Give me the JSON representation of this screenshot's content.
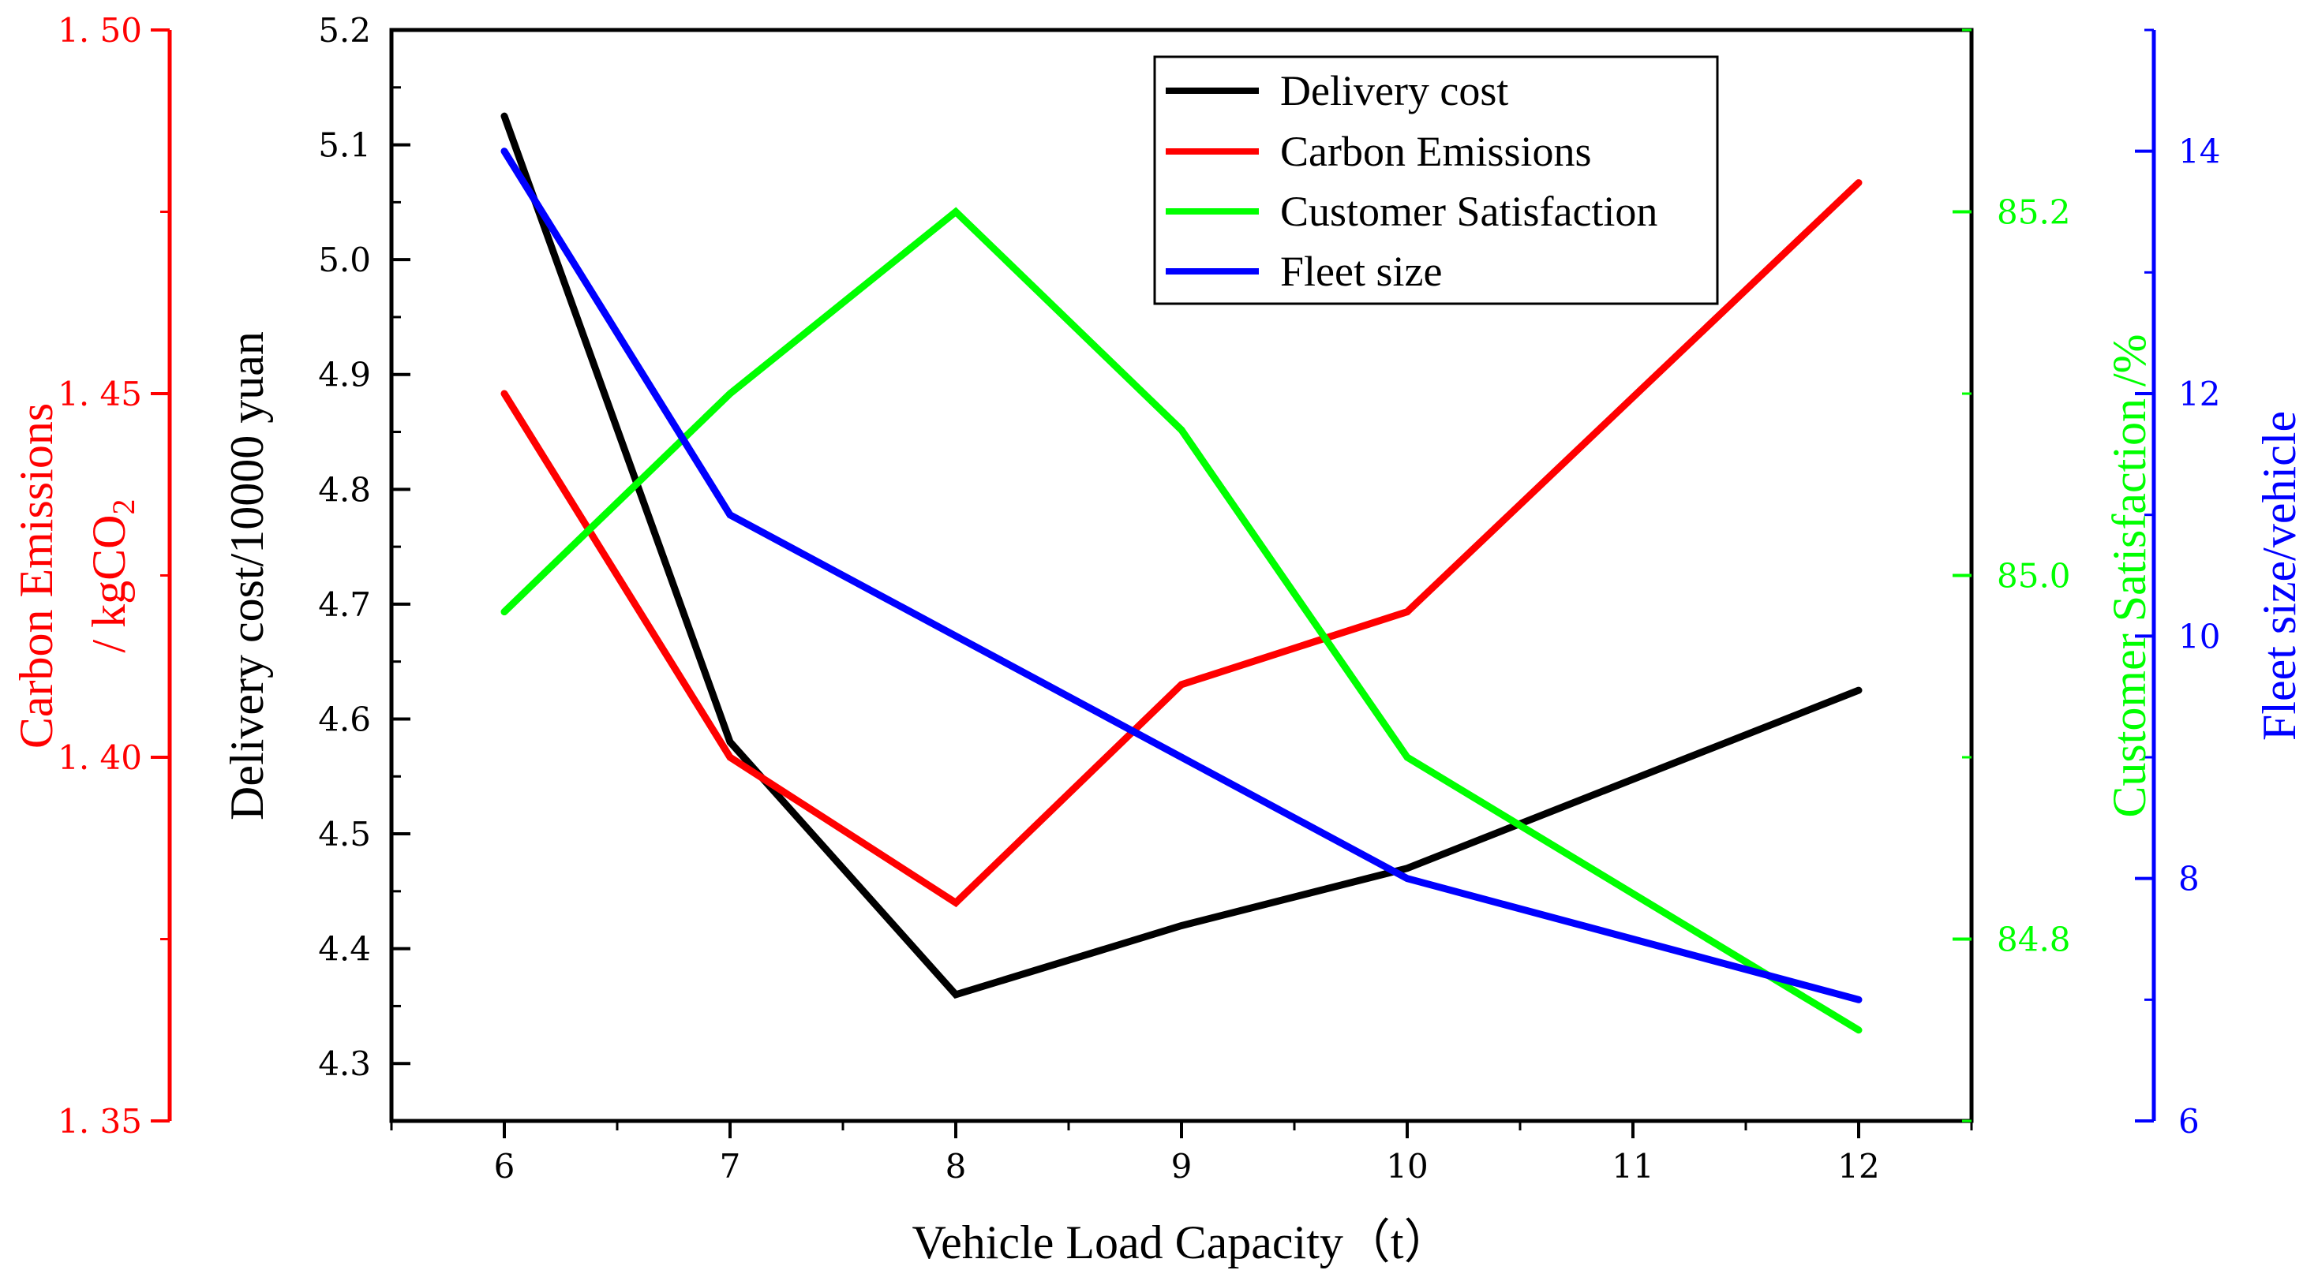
{
  "chart_data": {
    "type": "line",
    "x": [
      6,
      7,
      8,
      9,
      10,
      11,
      12
    ],
    "xlabel": "Vehicle Load Capacity（t）",
    "xticks": [
      "6",
      "7",
      "8",
      "9",
      "10",
      "11",
      "12"
    ],
    "xlim": [
      5.5,
      12.5
    ],
    "axes": {
      "cost": {
        "label": "Delivery cost/10000 yuan",
        "color": "#000000",
        "lim": [
          4.25,
          5.2
        ],
        "ticks": [
          "4.3",
          "4.4",
          "4.5",
          "4.6",
          "4.7",
          "4.8",
          "4.9",
          "5.0",
          "5.1",
          "5.2"
        ]
      },
      "carbon": {
        "label_line1": "Carbon Emissions",
        "label_line2_prefix": "/ kgCO",
        "label_line2_sub": "2",
        "color": "#ff0000",
        "lim": [
          1.35,
          1.5
        ],
        "ticks": [
          "1. 35",
          "1. 40",
          "1. 45",
          "1. 50"
        ]
      },
      "satisfaction": {
        "label": "Customer Satisfaction /%",
        "color": "#00ff00",
        "lim": [
          84.7,
          85.3
        ],
        "ticks": [
          "84.8",
          "85.0",
          "85.2"
        ]
      },
      "fleet": {
        "label": "Fleet size/vehicle",
        "color": "#0000ff",
        "lim": [
          6,
          15
        ],
        "ticks": [
          "6",
          "8",
          "10",
          "12",
          "14"
        ]
      }
    },
    "series": [
      {
        "name": "Delivery cost",
        "axis": "cost",
        "color": "#000000",
        "x": [
          6,
          7,
          8,
          9,
          10,
          12
        ],
        "values": [
          5.125,
          4.58,
          4.36,
          4.42,
          4.47,
          4.625
        ]
      },
      {
        "name": "Carbon Emissions",
        "axis": "carbon",
        "color": "#ff0000",
        "x": [
          6,
          7,
          8,
          9,
          10,
          12
        ],
        "values": [
          1.45,
          1.4,
          1.38,
          1.41,
          1.42,
          1.479
        ]
      },
      {
        "name": "Customer Satisfaction",
        "axis": "satisfaction",
        "color": "#00ff00",
        "x": [
          6,
          7,
          8,
          9,
          10,
          12
        ],
        "values": [
          84.98,
          85.1,
          85.2,
          85.08,
          84.9,
          84.75
        ]
      },
      {
        "name": "Fleet size",
        "axis": "fleet",
        "color": "#0000ff",
        "x": [
          6,
          7,
          8,
          9,
          10,
          12
        ],
        "values": [
          14,
          11,
          10,
          9,
          8,
          7
        ]
      }
    ],
    "legend_position": "top-right"
  }
}
